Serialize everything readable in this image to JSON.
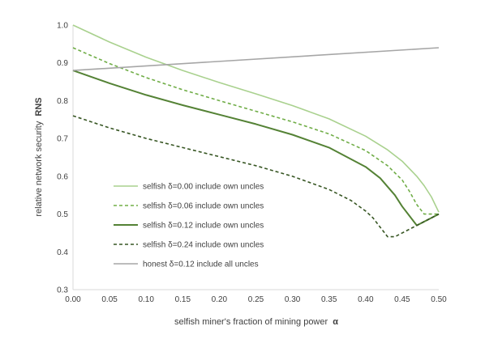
{
  "chart_data": {
    "type": "line",
    "xlabel": "selfish miner's fraction of mining power",
    "xlabel_symbol": "α",
    "ylabel": "relative network security",
    "ylabel_symbol": "RNS",
    "xlim": [
      0,
      0.5
    ],
    "ylim": [
      0.3,
      1.0
    ],
    "xticks": [
      "0.00",
      "0.05",
      "0.10",
      "0.15",
      "0.20",
      "0.25",
      "0.30",
      "0.35",
      "0.40",
      "0.45",
      "0.50"
    ],
    "yticks": [
      "0.3",
      "0.4",
      "0.5",
      "0.6",
      "0.7",
      "0.8",
      "0.9",
      "1.0"
    ],
    "grid": false,
    "legend_position": "lower-left inside",
    "series": [
      {
        "name": "selfish δ=0.00 include own uncles",
        "color": "#a9d18e",
        "dash": "solid",
        "points": [
          [
            0.0,
            1.0
          ],
          [
            0.05,
            0.955
          ],
          [
            0.1,
            0.915
          ],
          [
            0.15,
            0.88
          ],
          [
            0.2,
            0.848
          ],
          [
            0.25,
            0.818
          ],
          [
            0.3,
            0.787
          ],
          [
            0.35,
            0.752
          ],
          [
            0.4,
            0.706
          ],
          [
            0.43,
            0.67
          ],
          [
            0.45,
            0.64
          ],
          [
            0.47,
            0.6
          ],
          [
            0.48,
            0.575
          ],
          [
            0.49,
            0.545
          ],
          [
            0.5,
            0.505
          ]
        ]
      },
      {
        "name": "selfish δ=0.06 include own uncles",
        "color": "#70ad47",
        "dash": "dashed",
        "points": [
          [
            0.0,
            0.94
          ],
          [
            0.05,
            0.898
          ],
          [
            0.1,
            0.861
          ],
          [
            0.15,
            0.829
          ],
          [
            0.2,
            0.8
          ],
          [
            0.25,
            0.772
          ],
          [
            0.3,
            0.744
          ],
          [
            0.35,
            0.712
          ],
          [
            0.4,
            0.668
          ],
          [
            0.43,
            0.628
          ],
          [
            0.45,
            0.59
          ],
          [
            0.46,
            0.56
          ],
          [
            0.47,
            0.525
          ],
          [
            0.48,
            0.5
          ],
          [
            0.5,
            0.5
          ]
        ]
      },
      {
        "name": "selfish δ=0.12 include own uncles",
        "color": "#548235",
        "dash": "solid",
        "points": [
          [
            0.0,
            0.88
          ],
          [
            0.05,
            0.846
          ],
          [
            0.1,
            0.815
          ],
          [
            0.15,
            0.788
          ],
          [
            0.2,
            0.763
          ],
          [
            0.25,
            0.738
          ],
          [
            0.3,
            0.71
          ],
          [
            0.35,
            0.676
          ],
          [
            0.4,
            0.625
          ],
          [
            0.42,
            0.595
          ],
          [
            0.44,
            0.55
          ],
          [
            0.45,
            0.52
          ],
          [
            0.46,
            0.495
          ],
          [
            0.47,
            0.47
          ],
          [
            0.5,
            0.5
          ]
        ]
      },
      {
        "name": "selfish δ=0.24 include own uncles",
        "color": "#375623",
        "dash": "dashed",
        "points": [
          [
            0.0,
            0.76
          ],
          [
            0.05,
            0.728
          ],
          [
            0.1,
            0.7
          ],
          [
            0.15,
            0.676
          ],
          [
            0.2,
            0.652
          ],
          [
            0.25,
            0.628
          ],
          [
            0.3,
            0.6
          ],
          [
            0.35,
            0.565
          ],
          [
            0.38,
            0.536
          ],
          [
            0.4,
            0.508
          ],
          [
            0.41,
            0.49
          ],
          [
            0.42,
            0.465
          ],
          [
            0.43,
            0.44
          ],
          [
            0.44,
            0.44
          ],
          [
            0.5,
            0.5
          ]
        ]
      },
      {
        "name": "honest δ=0.12 include all uncles",
        "color": "#a6a6a6",
        "dash": "solid",
        "points": [
          [
            0.0,
            0.88
          ],
          [
            0.5,
            0.94
          ]
        ]
      }
    ]
  }
}
